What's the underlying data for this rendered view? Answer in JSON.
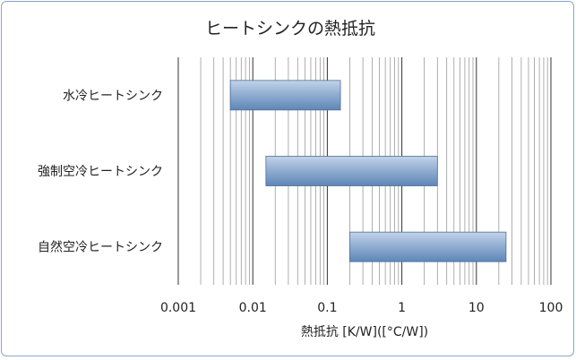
{
  "chart_data": {
    "type": "bar",
    "orientation": "horizontal",
    "title": "ヒートシンクの熱抵抗",
    "xlabel": "熱抵抗 [K/W]([°C/W])",
    "ylabel": "",
    "x_scale": "log",
    "xlim": [
      0.001,
      100
    ],
    "x_ticks": [
      "0.001",
      "0.01",
      "0.1",
      "1",
      "10",
      "100"
    ],
    "grid": {
      "major": true,
      "minor": true,
      "axis": "x"
    },
    "legend": "none",
    "categories": [
      "水冷ヒートシンク",
      "強制空冷ヒートシンク",
      "自然空冷ヒートシンク"
    ],
    "ranges": [
      {
        "category": "水冷ヒートシンク",
        "min": 0.005,
        "max": 0.15
      },
      {
        "category": "強制空冷ヒートシンク",
        "min": 0.015,
        "max": 3
      },
      {
        "category": "自然空冷ヒートシンク",
        "min": 0.2,
        "max": 25
      }
    ],
    "colors": {
      "bar_top": "#c3d3e8",
      "bar_bottom": "#5f86b6",
      "bar_edge": "#4a6f9c",
      "grid": "#555555"
    }
  }
}
